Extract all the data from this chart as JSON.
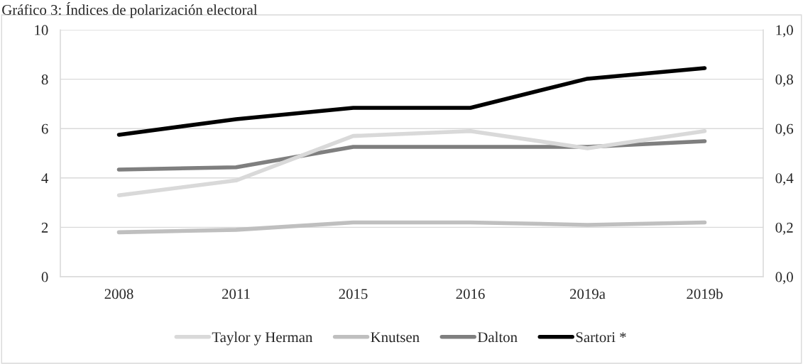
{
  "chart_data": {
    "type": "line",
    "title": "Gráfico 3: Índices de polarización electoral",
    "categories": [
      "2008",
      "2011",
      "2015",
      "2016",
      "2019a",
      "2019b"
    ],
    "series": [
      {
        "name": "Taylor y Herman",
        "color": "#d9d9d9",
        "axis": "y2",
        "values": [
          0.33,
          0.39,
          0.57,
          0.59,
          0.52,
          0.59
        ]
      },
      {
        "name": "Knutsen",
        "color": "#bfbfbf",
        "axis": "y2",
        "values": [
          0.18,
          0.19,
          0.22,
          0.22,
          0.21,
          0.22
        ]
      },
      {
        "name": "Dalton",
        "color": "#7f7f7f",
        "values": [
          4.34,
          4.43,
          5.26,
          5.26,
          5.26,
          5.49
        ]
      },
      {
        "name": "Sartori *",
        "color": "#000000",
        "values": [
          5.75,
          6.38,
          6.84,
          6.84,
          8.02,
          8.45
        ]
      }
    ],
    "ylim": [
      0,
      10
    ],
    "yticks": [
      0,
      2,
      4,
      6,
      8,
      10
    ],
    "y2lim": [
      0,
      1
    ],
    "y2ticks": [
      {
        "value": 0,
        "label": "0,0"
      },
      {
        "value": 0.2,
        "label": "0,2"
      },
      {
        "value": 0.4,
        "label": "0,4"
      },
      {
        "value": 0.6,
        "label": "0,6"
      },
      {
        "value": 0.8,
        "label": "0,8"
      },
      {
        "value": 1,
        "label": "1,0"
      }
    ],
    "grid": "y",
    "legend": "bottom",
    "marker": "none",
    "line_style": "solid"
  }
}
